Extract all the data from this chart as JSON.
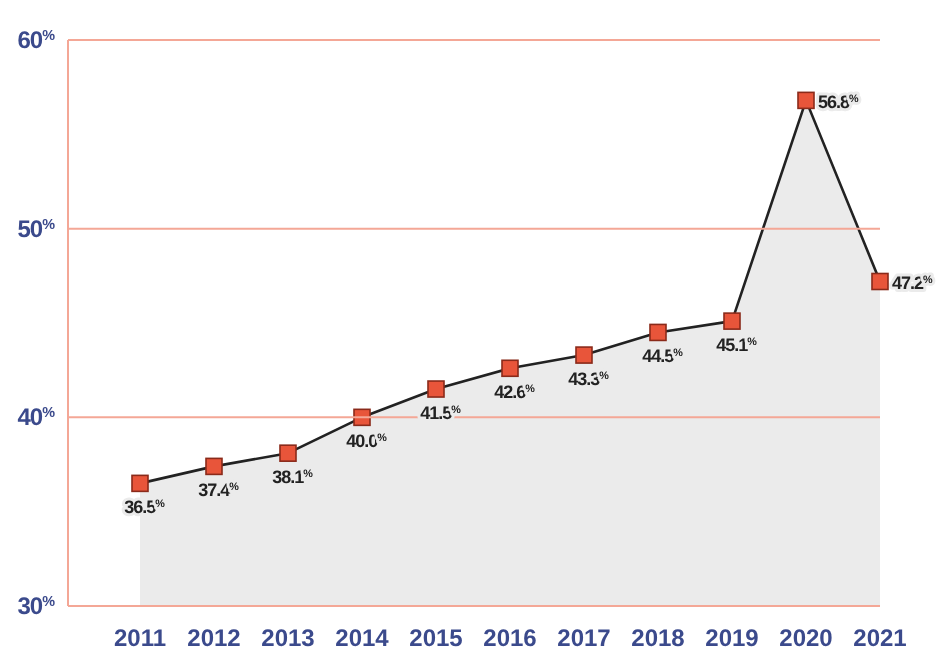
{
  "chart_data": {
    "type": "area",
    "categories": [
      "2011",
      "2012",
      "2013",
      "2014",
      "2015",
      "2016",
      "2017",
      "2018",
      "2019",
      "2020",
      "2021"
    ],
    "series": [
      {
        "color": "#ebebeb",
        "values": [
          36.5,
          37.4,
          38.1,
          40.0,
          41.5,
          42.6,
          43.3,
          44.5,
          45.1,
          56.8,
          47.2
        ],
        "value_labels": [
          "36.5$^{%}$",
          "37.4$^{%}$",
          "38.1$^{%}$",
          "40.0$^{%}$",
          "41.5$^{%}$",
          "42.6$^{%}$",
          "43.3$^{%}$",
          "44.5$^{%}$",
          "45.1$^{%}$",
          "56.8$^{%}$",
          "47.2$^{%}$"
        ]
      }
    ],
    "ylim": [
      30,
      60
    ],
    "yticks": [
      {
        "value": 30,
        "label": "30$^{%}$"
      },
      {
        "value": 40,
        "label": "40$^{%}$"
      },
      {
        "value": 50,
        "label": "50$^{%}$"
      },
      {
        "value": 60,
        "label": "60$^{%}$"
      }
    ],
    "grid": "y",
    "marker": "square"
  }
}
